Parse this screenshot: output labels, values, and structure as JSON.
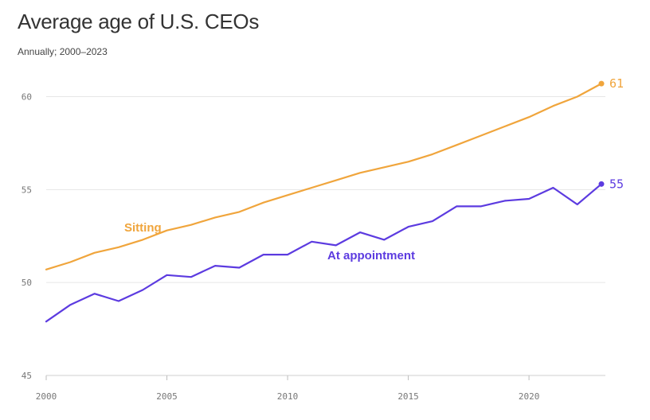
{
  "chart_data": {
    "type": "line",
    "title": "Average age of U.S. CEOs",
    "subtitle": "Annually; 2000–2023",
    "xlabel": "",
    "ylabel": "",
    "xlim": [
      2000,
      2023
    ],
    "ylim": [
      45,
      62
    ],
    "x_ticks": [
      2000,
      2005,
      2010,
      2015,
      2020
    ],
    "y_ticks": [
      45,
      50,
      55,
      60
    ],
    "grid": "horizontal",
    "x": [
      2000,
      2001,
      2002,
      2003,
      2004,
      2005,
      2006,
      2007,
      2008,
      2009,
      2010,
      2011,
      2012,
      2013,
      2014,
      2015,
      2016,
      2017,
      2018,
      2019,
      2020,
      2021,
      2022,
      2023
    ],
    "series": [
      {
        "name": "Sitting",
        "color": "#f0a53c",
        "end_label": "61",
        "values": [
          50.7,
          51.1,
          51.6,
          51.9,
          52.3,
          52.8,
          53.1,
          53.5,
          53.8,
          54.3,
          54.7,
          55.1,
          55.5,
          55.9,
          56.2,
          56.5,
          56.9,
          57.4,
          57.9,
          58.4,
          58.9,
          59.5,
          60.0,
          60.7
        ]
      },
      {
        "name": "At appointment",
        "color": "#5c3be0",
        "end_label": "55",
        "values": [
          47.9,
          48.8,
          49.4,
          49.0,
          49.6,
          50.4,
          50.3,
          50.9,
          50.8,
          51.5,
          51.5,
          52.2,
          52.0,
          52.7,
          52.3,
          53.0,
          53.3,
          54.1,
          54.1,
          54.4,
          54.5,
          55.1,
          54.2,
          55.3
        ]
      }
    ]
  }
}
